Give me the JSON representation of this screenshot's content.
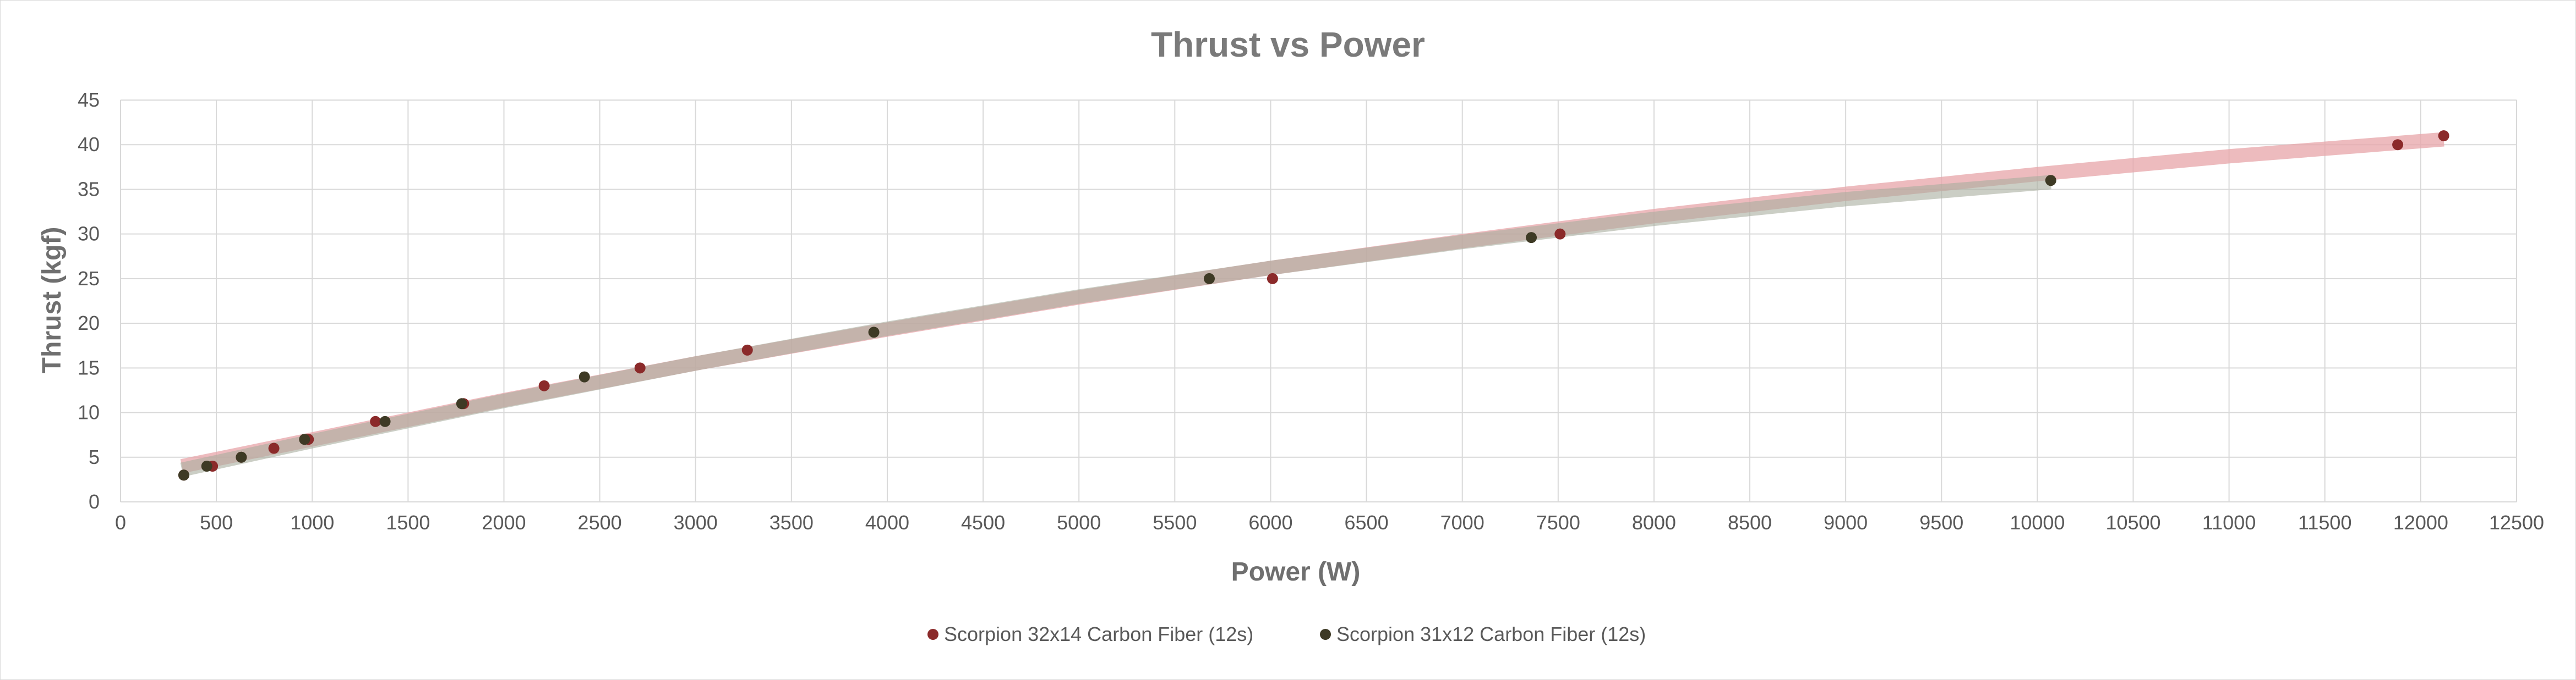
{
  "chart_data": {
    "type": "scatter",
    "title": "Thrust vs Power",
    "xlabel": "Power (W)",
    "ylabel": "Thrust (kgf)",
    "xlim": [
      0,
      12500
    ],
    "ylim": [
      0,
      45
    ],
    "xticks": [
      0,
      500,
      1000,
      1500,
      2000,
      2500,
      3000,
      3500,
      4000,
      4500,
      5000,
      5500,
      6000,
      6500,
      7000,
      7500,
      8000,
      8500,
      9000,
      9500,
      10000,
      10500,
      11000,
      11500,
      12000,
      12500
    ],
    "yticks": [
      0,
      5,
      10,
      15,
      20,
      25,
      30,
      35,
      40,
      45
    ],
    "grid": true,
    "legend_position": "bottom",
    "series": [
      {
        "name": "Scorpion 32x14 Carbon Fiber (12s)",
        "color": "#8b2a2a",
        "trend_color": "#e7a4a8",
        "points": [
          {
            "x": 330,
            "y": 3
          },
          {
            "x": 480,
            "y": 4
          },
          {
            "x": 630,
            "y": 5
          },
          {
            "x": 800,
            "y": 6
          },
          {
            "x": 980,
            "y": 7
          },
          {
            "x": 1330,
            "y": 9
          },
          {
            "x": 1790,
            "y": 11
          },
          {
            "x": 2210,
            "y": 13
          },
          {
            "x": 2710,
            "y": 15
          },
          {
            "x": 3270,
            "y": 17
          },
          {
            "x": 6010,
            "y": 25
          },
          {
            "x": 7510,
            "y": 30
          },
          {
            "x": 11880,
            "y": 40
          },
          {
            "x": 12120,
            "y": 41
          }
        ],
        "trend": [
          {
            "x": 320,
            "y": 4.0
          },
          {
            "x": 1000,
            "y": 7.0
          },
          {
            "x": 2000,
            "y": 11.4
          },
          {
            "x": 3000,
            "y": 15.5
          },
          {
            "x": 4000,
            "y": 19.3
          },
          {
            "x": 5000,
            "y": 22.9
          },
          {
            "x": 6000,
            "y": 26.2
          },
          {
            "x": 7000,
            "y": 29.2
          },
          {
            "x": 8000,
            "y": 32.0
          },
          {
            "x": 9000,
            "y": 34.5
          },
          {
            "x": 10000,
            "y": 36.7
          },
          {
            "x": 11000,
            "y": 38.7
          },
          {
            "x": 12120,
            "y": 40.6
          }
        ]
      },
      {
        "name": "Scorpion 31x12 Carbon Fiber (12s)",
        "color": "#3e3a25",
        "trend_color": "#a9ad9e",
        "points": [
          {
            "x": 330,
            "y": 3
          },
          {
            "x": 450,
            "y": 4
          },
          {
            "x": 630,
            "y": 5
          },
          {
            "x": 960,
            "y": 7
          },
          {
            "x": 1380,
            "y": 9
          },
          {
            "x": 1780,
            "y": 11
          },
          {
            "x": 2420,
            "y": 14
          },
          {
            "x": 3930,
            "y": 19
          },
          {
            "x": 5680,
            "y": 25
          },
          {
            "x": 7360,
            "y": 29.6
          },
          {
            "x": 10070,
            "y": 36
          }
        ],
        "trend": [
          {
            "x": 320,
            "y": 3.6
          },
          {
            "x": 1000,
            "y": 6.8
          },
          {
            "x": 2000,
            "y": 11.3
          },
          {
            "x": 3000,
            "y": 15.5
          },
          {
            "x": 4000,
            "y": 19.4
          },
          {
            "x": 5000,
            "y": 23.0
          },
          {
            "x": 6000,
            "y": 26.2
          },
          {
            "x": 7000,
            "y": 29.1
          },
          {
            "x": 8000,
            "y": 31.7
          },
          {
            "x": 9000,
            "y": 33.9
          },
          {
            "x": 10070,
            "y": 35.8
          }
        ]
      }
    ]
  }
}
